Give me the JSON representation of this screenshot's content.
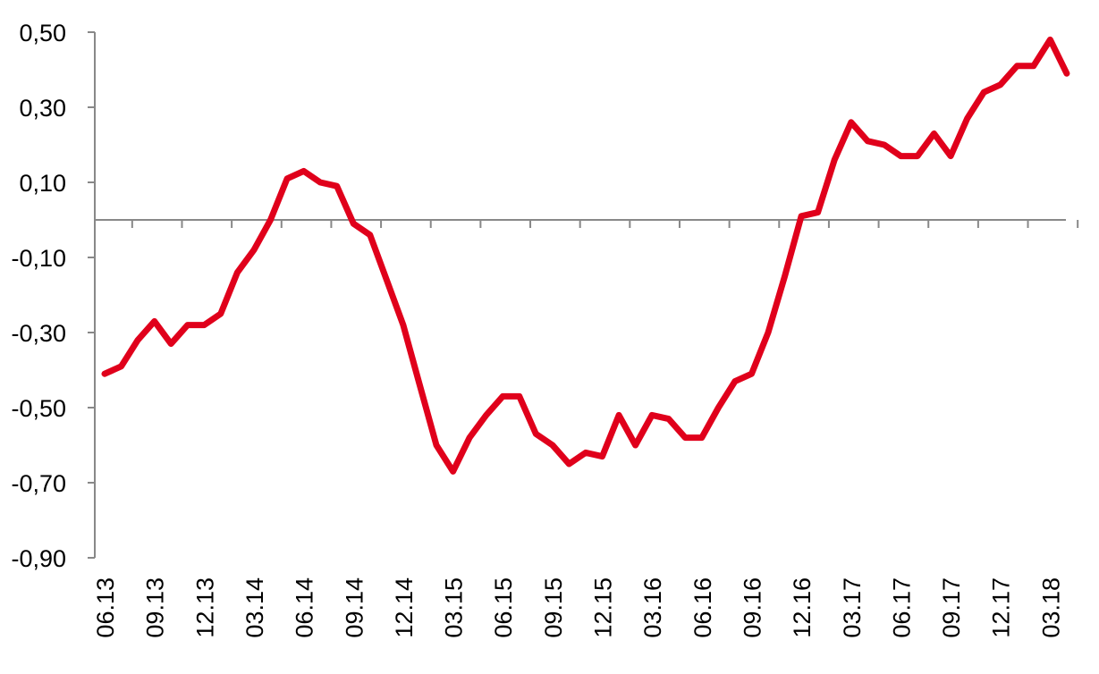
{
  "chart_data": {
    "type": "line",
    "title": "",
    "xlabel": "",
    "ylabel": "",
    "ylim": [
      -0.9,
      0.5
    ],
    "y_ticks": [
      {
        "value": 0.5,
        "label": "0,50"
      },
      {
        "value": 0.3,
        "label": "0,30"
      },
      {
        "value": 0.1,
        "label": "0,10"
      },
      {
        "value": -0.1,
        "label": "-0,10"
      },
      {
        "value": -0.3,
        "label": "-0,30"
      },
      {
        "value": -0.5,
        "label": "-0,50"
      },
      {
        "value": -0.7,
        "label": "-0,70"
      },
      {
        "value": -0.9,
        "label": "-0,90"
      }
    ],
    "x_tick_labels": [
      "06.13",
      "09.13",
      "12.13",
      "03.14",
      "06.14",
      "09.14",
      "12.14",
      "03.15",
      "06.15",
      "09.15",
      "12.15",
      "03.16",
      "06.16",
      "09.16",
      "12.16",
      "03.17",
      "06.17",
      "09.17",
      "12.17",
      "03.18"
    ],
    "grid": false,
    "legend": "none",
    "color": "#E0001B",
    "series": [
      {
        "x": [
          "06.13",
          "07.13",
          "08.13",
          "09.13",
          "10.13",
          "11.13",
          "12.13",
          "01.14",
          "02.14",
          "03.14",
          "04.14",
          "05.14",
          "06.14",
          "07.14",
          "08.14",
          "09.14",
          "10.14",
          "11.14",
          "12.14",
          "01.15",
          "02.15",
          "03.15",
          "04.15",
          "05.15",
          "06.15",
          "07.15",
          "08.15",
          "09.15",
          "10.15",
          "11.15",
          "12.15",
          "01.16",
          "02.16",
          "03.16",
          "04.16",
          "05.16",
          "06.16",
          "07.16",
          "08.16",
          "09.16",
          "10.16",
          "11.16",
          "12.16",
          "01.17",
          "02.17",
          "03.17",
          "04.17",
          "05.17",
          "06.17",
          "07.17",
          "08.17",
          "09.17",
          "10.17",
          "11.17",
          "12.17",
          "01.18",
          "02.18",
          "03.18",
          "04.18"
        ],
        "values": [
          -0.41,
          -0.39,
          -0.32,
          -0.27,
          -0.33,
          -0.28,
          -0.28,
          -0.25,
          -0.14,
          -0.08,
          0.0,
          0.11,
          0.13,
          0.1,
          0.09,
          -0.01,
          -0.04,
          -0.16,
          -0.28,
          -0.44,
          -0.6,
          -0.67,
          -0.58,
          -0.52,
          -0.47,
          -0.47,
          -0.57,
          -0.6,
          -0.65,
          -0.62,
          -0.63,
          -0.52,
          -0.6,
          -0.52,
          -0.53,
          -0.58,
          -0.58,
          -0.5,
          -0.43,
          -0.41,
          -0.3,
          -0.15,
          0.01,
          0.02,
          0.16,
          0.26,
          0.21,
          0.2,
          0.17,
          0.17,
          0.23,
          0.17,
          0.27,
          0.34,
          0.36,
          0.41,
          0.41,
          0.48,
          0.39
        ]
      }
    ]
  }
}
